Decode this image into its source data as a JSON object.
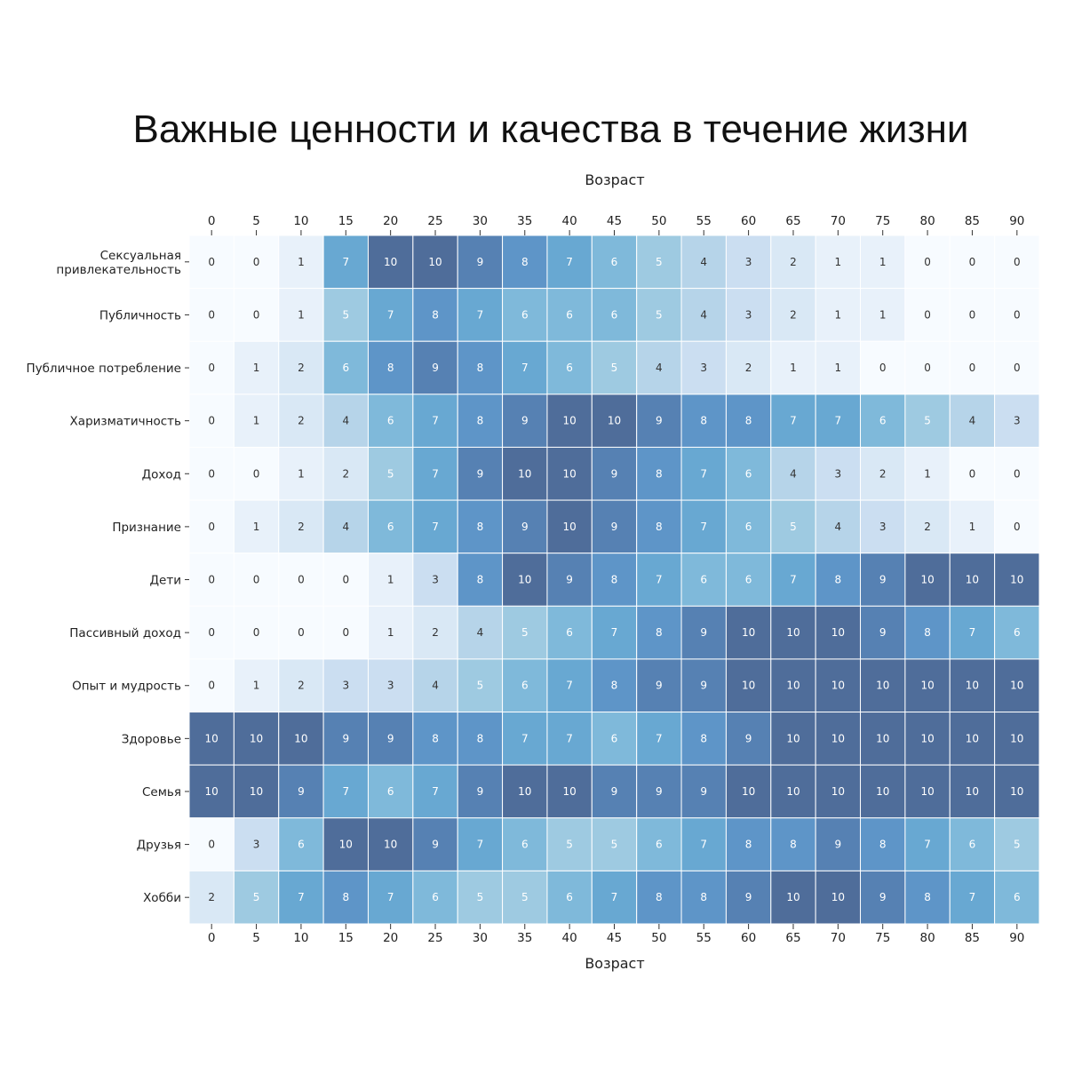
{
  "chart_data": {
    "type": "heatmap",
    "title": "Важные ценности и качества в течение жизни",
    "xlabel_top": "Возраст",
    "xlabel_bottom": "Возраст",
    "ylabel": "",
    "x": [
      "0",
      "5",
      "10",
      "15",
      "20",
      "25",
      "30",
      "35",
      "40",
      "45",
      "50",
      "55",
      "60",
      "65",
      "70",
      "75",
      "80",
      "85",
      "90"
    ],
    "rows": [
      {
        "label": [
          "Сексуальная",
          "привлекательность"
        ],
        "values": [
          0,
          0,
          1,
          7,
          10,
          10,
          9,
          8,
          7,
          6,
          5,
          4,
          3,
          2,
          1,
          1,
          0,
          0,
          0
        ]
      },
      {
        "label": [
          "Публичность"
        ],
        "values": [
          0,
          0,
          1,
          5,
          7,
          8,
          7,
          6,
          6,
          6,
          5,
          4,
          3,
          2,
          1,
          1,
          0,
          0,
          0
        ]
      },
      {
        "label": [
          "Публичное потребление"
        ],
        "values": [
          0,
          1,
          2,
          6,
          8,
          9,
          8,
          7,
          6,
          5,
          4,
          3,
          2,
          1,
          1,
          0,
          0,
          0,
          0
        ]
      },
      {
        "label": [
          "Харизматичность"
        ],
        "values": [
          0,
          1,
          2,
          4,
          6,
          7,
          8,
          9,
          10,
          10,
          9,
          8,
          8,
          7,
          7,
          6,
          5,
          4,
          3
        ]
      },
      {
        "label": [
          "Доход"
        ],
        "values": [
          0,
          0,
          1,
          2,
          5,
          7,
          9,
          10,
          10,
          9,
          8,
          7,
          6,
          4,
          3,
          2,
          1,
          0,
          0
        ]
      },
      {
        "label": [
          "Признание"
        ],
        "values": [
          0,
          1,
          2,
          4,
          6,
          7,
          8,
          9,
          10,
          9,
          8,
          7,
          6,
          5,
          4,
          3,
          2,
          1,
          0
        ]
      },
      {
        "label": [
          "Дети"
        ],
        "values": [
          0,
          0,
          0,
          0,
          1,
          3,
          8,
          10,
          9,
          8,
          7,
          6,
          6,
          7,
          8,
          9,
          10,
          10,
          10
        ]
      },
      {
        "label": [
          "Пассивный доход"
        ],
        "values": [
          0,
          0,
          0,
          0,
          1,
          2,
          4,
          5,
          6,
          7,
          8,
          9,
          10,
          10,
          10,
          9,
          8,
          7,
          6
        ]
      },
      {
        "label": [
          "Опыт и мудрость"
        ],
        "values": [
          0,
          1,
          2,
          3,
          3,
          4,
          5,
          6,
          7,
          8,
          9,
          9,
          10,
          10,
          10,
          10,
          10,
          10,
          10
        ]
      },
      {
        "label": [
          "Здоровье"
        ],
        "values": [
          10,
          10,
          10,
          9,
          9,
          8,
          8,
          7,
          7,
          6,
          7,
          8,
          9,
          10,
          10,
          10,
          10,
          10,
          10
        ]
      },
      {
        "label": [
          "Семья"
        ],
        "values": [
          10,
          10,
          9,
          7,
          6,
          7,
          9,
          10,
          10,
          9,
          9,
          9,
          10,
          10,
          10,
          10,
          10,
          10,
          10
        ]
      },
      {
        "label": [
          "Друзья"
        ],
        "values": [
          0,
          3,
          6,
          10,
          10,
          9,
          7,
          6,
          5,
          5,
          6,
          7,
          8,
          8,
          9,
          8,
          7,
          6,
          5
        ]
      },
      {
        "label": [
          "Хобби"
        ],
        "values": [
          2,
          5,
          7,
          8,
          7,
          6,
          5,
          5,
          6,
          7,
          8,
          8,
          9,
          10,
          10,
          9,
          8,
          7,
          6
        ]
      }
    ],
    "value_range": [
      0,
      10
    ],
    "colormap": [
      "#f7fbff",
      "#deebf7",
      "#c6dbef",
      "#9ecae1",
      "#6baed6",
      "#5b8fc4",
      "#4f6d9a"
    ],
    "grid": false,
    "legend": "none"
  }
}
